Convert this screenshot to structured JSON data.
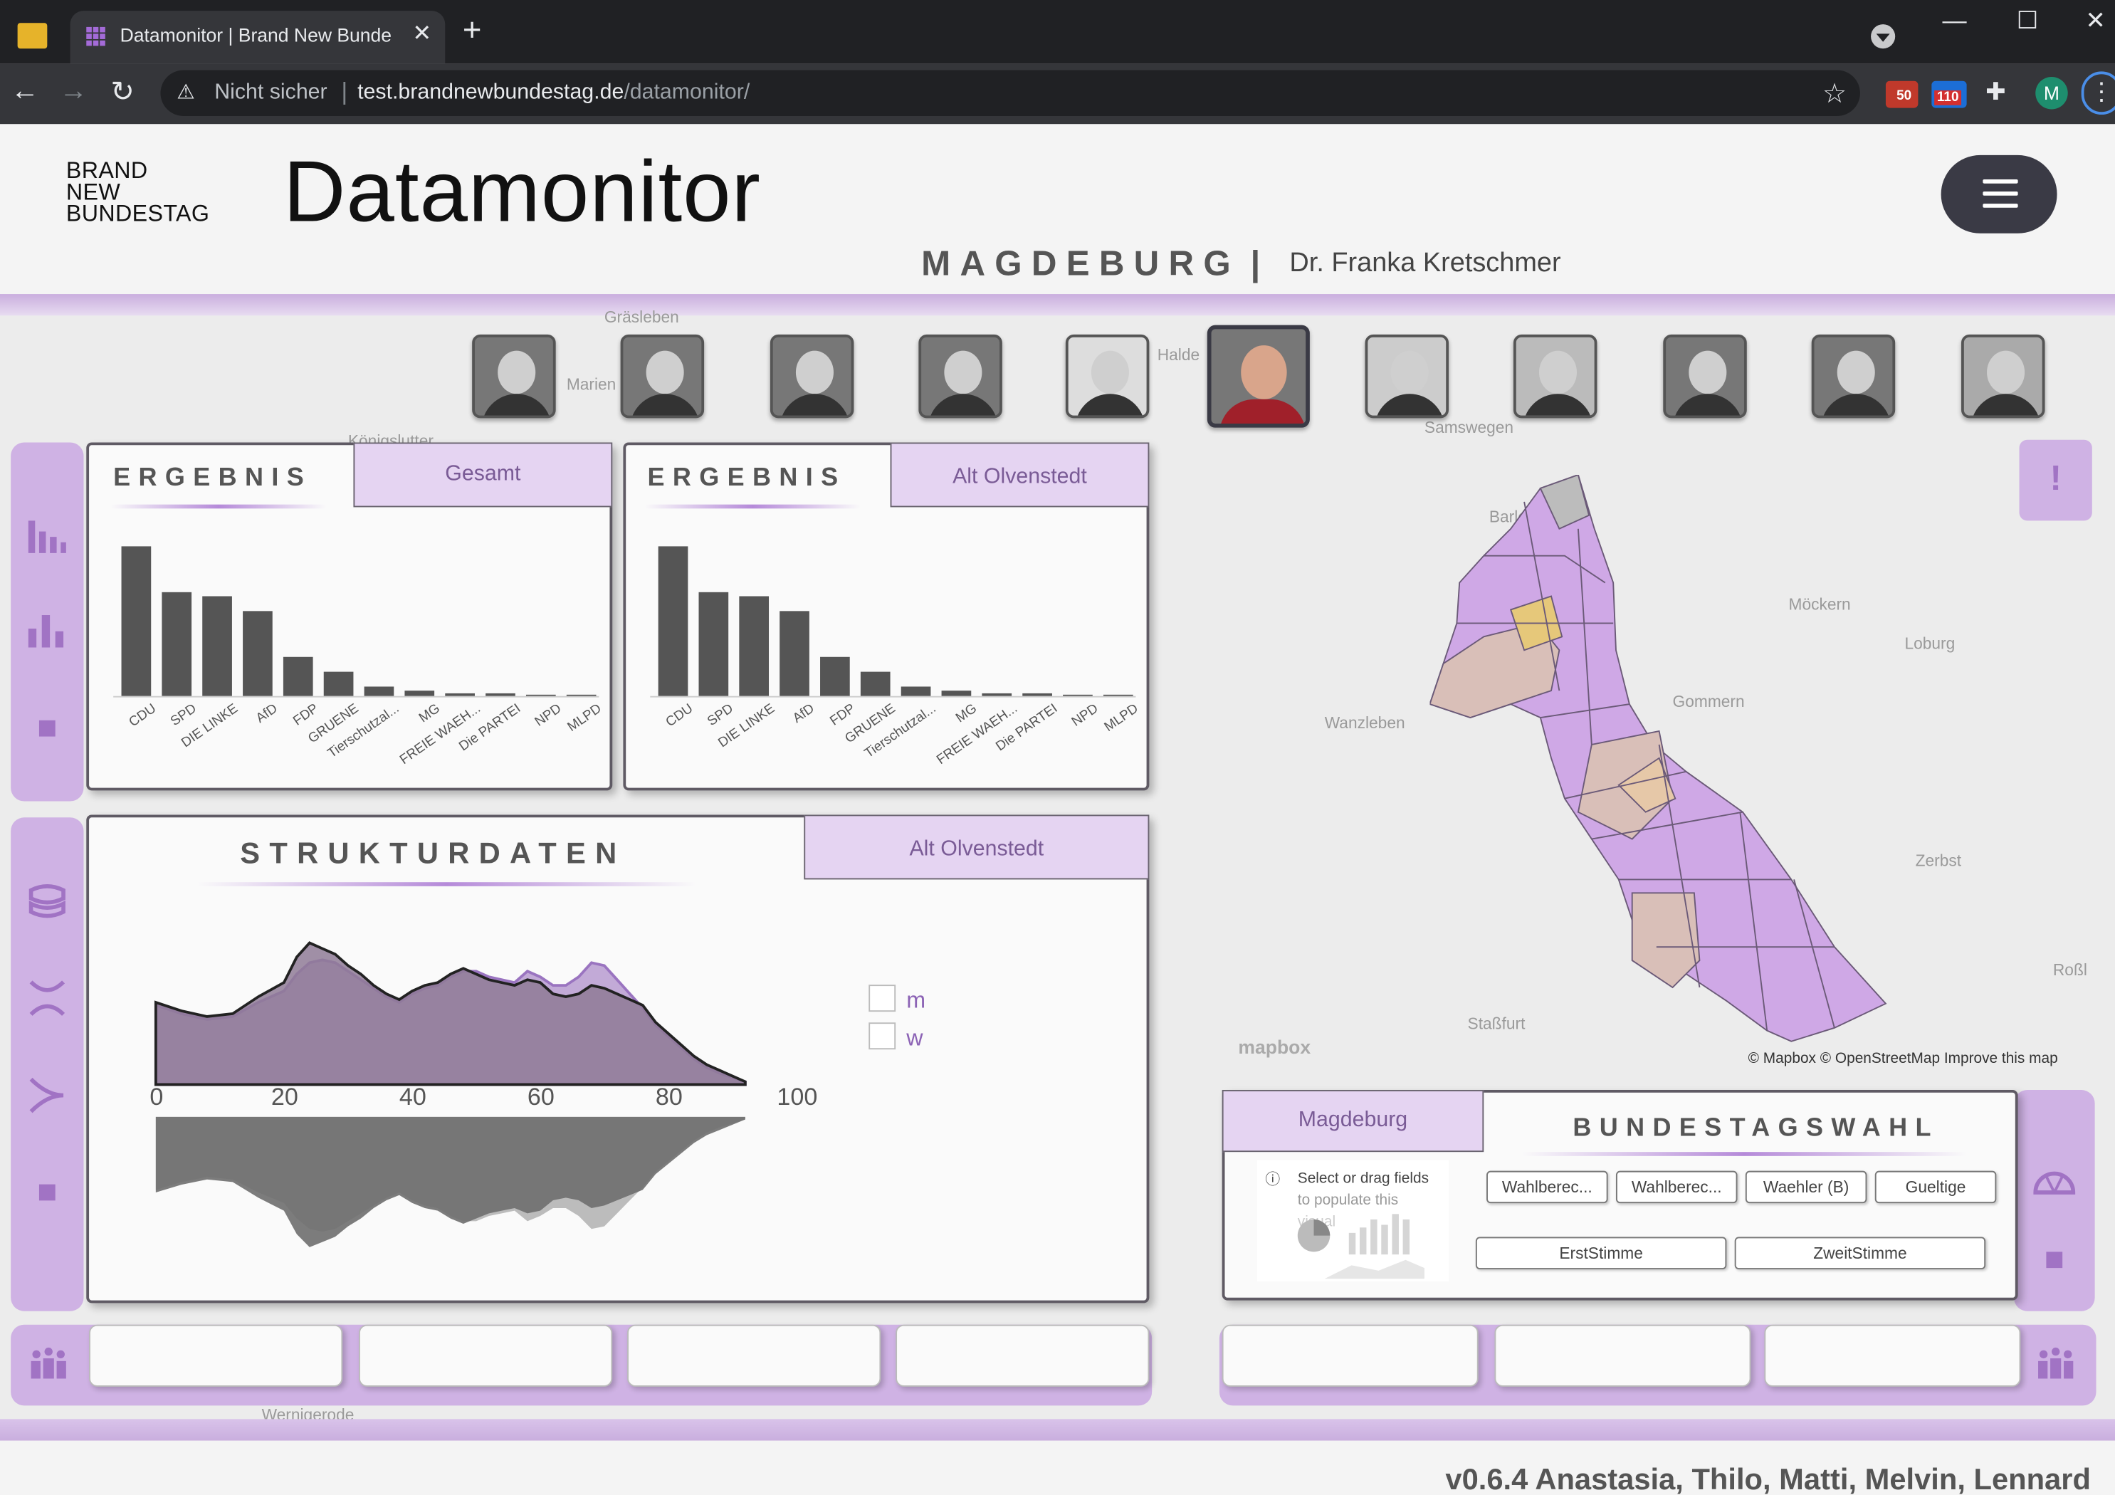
{
  "browser": {
    "tab_title": "Datamonitor | Brand New Bunde",
    "not_secure": "Nicht sicher",
    "url_host": "test.brandnewbundestag.de",
    "url_path": "/datamonitor/",
    "ext_badge_1": "50",
    "ext_badge_2": "110",
    "profile_initial": "M"
  },
  "header": {
    "logo_line1": "BRAND",
    "logo_line2": "NEW",
    "logo_line3": "BUNDESTAG",
    "title": "Datamonitor",
    "city": "MAGDEBURG",
    "separator": "|",
    "candidate": "Dr. Franka Kretschmer"
  },
  "map_labels": [
    "Gräsleben",
    "Marien",
    "Königslutter",
    "Halde",
    "Haldensleben",
    "Samswegen",
    "Barleben",
    "Möckern",
    "Loburg",
    "Gommern",
    "Wanzleben",
    "Zerbst",
    "Staßfurt",
    "Roßl",
    "Wernigerode"
  ],
  "ergebnis_gesamt": {
    "title": "ERGEBNIS",
    "tab": "Gesamt",
    "chart_data": {
      "type": "bar",
      "categories": [
        "CDU",
        "SPD",
        "DIE LINKE",
        "AfD",
        "FDP",
        "GRUENE",
        "Tierschutzal...",
        "MG",
        "FREIE WAEH...",
        "Die PARTEI",
        "NPD",
        "MLPD"
      ],
      "values": [
        30,
        21,
        20,
        17,
        8,
        5,
        2,
        1,
        0.6,
        0.5,
        0.4,
        0.2
      ],
      "ylim": [
        0,
        32
      ]
    }
  },
  "ergebnis_ort": {
    "title": "ERGEBNIS",
    "tab": "Alt Olvenstedt",
    "chart_data": {
      "type": "bar",
      "categories": [
        "CDU",
        "SPD",
        "DIE LINKE",
        "AfD",
        "FDP",
        "GRUENE",
        "Tierschutzal...",
        "MG",
        "FREIE WAEH...",
        "Die PARTEI",
        "NPD",
        "MLPD"
      ],
      "values": [
        30,
        21,
        20,
        17,
        8,
        5,
        2,
        1,
        0.6,
        0.5,
        0.4,
        0.2
      ],
      "ylim": [
        0,
        32
      ]
    }
  },
  "strukturdaten": {
    "title": "STRUKTURDATEN",
    "tab": "Alt Olvenstedt",
    "legend_m": "m",
    "legend_w": "w",
    "chart_data": {
      "type": "area",
      "x_ticks": [
        "0",
        "20",
        "40",
        "60",
        "80",
        "100"
      ],
      "xlim": [
        0,
        100
      ],
      "series": [
        {
          "name": "m",
          "x": [
            2,
            6,
            10,
            14,
            18,
            22,
            24,
            26,
            28,
            30,
            32,
            34,
            36,
            38,
            40,
            42,
            44,
            46,
            48,
            50,
            52,
            54,
            56,
            58,
            60,
            62,
            64,
            66,
            68,
            70,
            72,
            74,
            76,
            78,
            80,
            82,
            84,
            86,
            88,
            90,
            92,
            94
          ],
          "values": [
            0.58,
            0.52,
            0.48,
            0.5,
            0.62,
            0.72,
            0.9,
            1.0,
            0.96,
            0.92,
            0.84,
            0.78,
            0.7,
            0.64,
            0.6,
            0.66,
            0.7,
            0.72,
            0.78,
            0.82,
            0.78,
            0.74,
            0.72,
            0.7,
            0.74,
            0.72,
            0.64,
            0.62,
            0.64,
            0.7,
            0.68,
            0.64,
            0.6,
            0.56,
            0.44,
            0.36,
            0.28,
            0.2,
            0.14,
            0.1,
            0.06,
            0.02
          ]
        },
        {
          "name": "w",
          "x": [
            2,
            6,
            10,
            14,
            18,
            22,
            24,
            26,
            28,
            30,
            32,
            34,
            36,
            38,
            40,
            42,
            44,
            46,
            48,
            50,
            52,
            54,
            56,
            58,
            60,
            62,
            64,
            66,
            68,
            70,
            72,
            74,
            76,
            78,
            80,
            82,
            84,
            86,
            88,
            90,
            92,
            94
          ],
          "values": [
            0.56,
            0.5,
            0.46,
            0.48,
            0.58,
            0.66,
            0.78,
            0.86,
            0.88,
            0.86,
            0.8,
            0.74,
            0.68,
            0.62,
            0.58,
            0.64,
            0.68,
            0.7,
            0.76,
            0.8,
            0.8,
            0.76,
            0.74,
            0.72,
            0.8,
            0.76,
            0.7,
            0.7,
            0.76,
            0.86,
            0.84,
            0.74,
            0.64,
            0.54,
            0.42,
            0.34,
            0.26,
            0.18,
            0.12,
            0.08,
            0.05,
            0.02
          ]
        }
      ]
    }
  },
  "bundestagswahl": {
    "tab": "Magdeburg",
    "title": "BUNDESTAGSWAHL",
    "placeholder_line1": "Select or drag fields",
    "placeholder_line2": "to populate this",
    "placeholder_line3": "visual",
    "buttons_row1": [
      "Wahlberec...",
      "Wahlberec...",
      "Waehler (B)",
      "Gueltige"
    ],
    "buttons_row2": [
      "ErstStimme",
      "ZweitStimme"
    ]
  },
  "map_attribution": "© Mapbox © OpenStreetMap  Improve this map",
  "mapbox_logo": "mapbox",
  "footer": {
    "version": "v0.6.4 Anastasia, Thilo, Matti, Melvin, Lennard"
  },
  "colors": {
    "accent": "#cfb2e4",
    "accent_dark": "#a173c4",
    "bar": "#555555",
    "area_m": "#8f7b97",
    "area_w": "#b79bd0"
  },
  "icons": [
    "bar-chart-icon",
    "population-icon",
    "pyramid-icon",
    "split-icon",
    "merge-icon",
    "pie-gauge-icon",
    "people-group-icon",
    "exclamation-icon"
  ]
}
